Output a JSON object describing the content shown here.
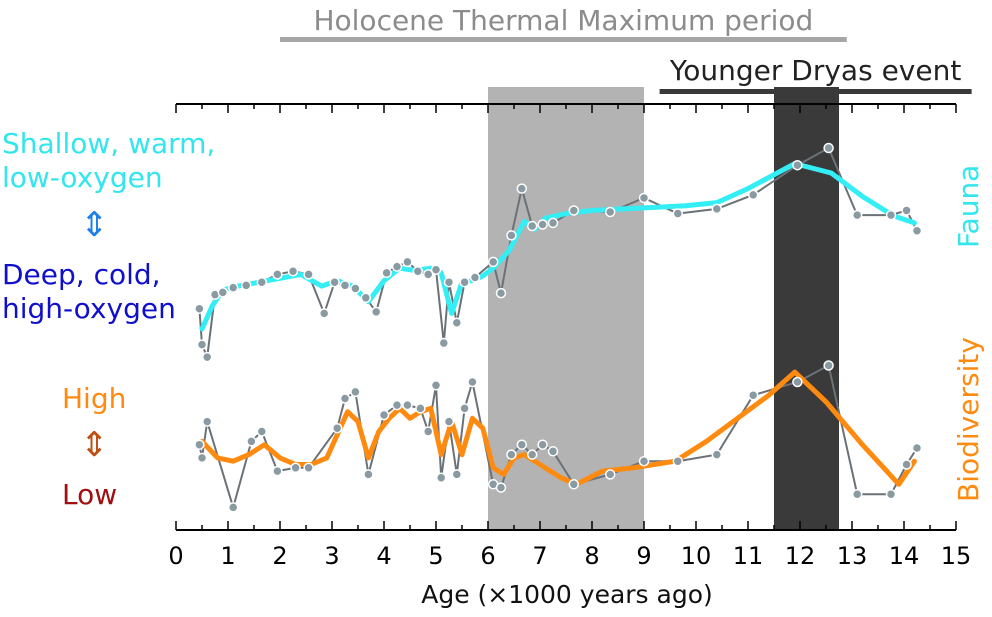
{
  "chart_data": {
    "type": "line",
    "title": "",
    "xlabel": "Age (×1000 years ago)",
    "x_ticks": [
      "0",
      "1",
      "2",
      "3",
      "4",
      "5",
      "6",
      "7",
      "8",
      "9",
      "10",
      "11",
      "12",
      "13",
      "14",
      "15"
    ],
    "xlim": [
      0,
      15
    ],
    "periods": [
      {
        "name": "Holocene Thermal Maximum period",
        "bar_range": [
          2.0,
          12.9
        ],
        "shade_range": [
          6.0,
          9.0
        ],
        "shade_color": "#b3b3b3",
        "bar_color": "#a6a6a6"
      },
      {
        "name": "Younger Dryas event",
        "bar_range": [
          9.3,
          15.3
        ],
        "shade_range": [
          11.5,
          12.75
        ],
        "shade_color": "#3a3a3a",
        "bar_color": "#3a3a3a"
      }
    ],
    "panels": [
      {
        "name": "Fauna",
        "label_color": "#33e6ee",
        "y_top_label": "Shallow, warm, low-oxygen",
        "y_bottom_label": "Deep, cold, high-oxygen",
        "y_top_color": "#33e6ee",
        "y_bottom_color": "#1010cc",
        "arrow_glyph": "⇕",
        "arrow_color": "#1f7fe8",
        "raw": {
          "x": [
            0.45,
            0.5,
            0.6,
            0.75,
            0.9,
            1.1,
            1.35,
            1.65,
            1.95,
            2.25,
            2.55,
            2.85,
            3.05,
            3.25,
            3.45,
            3.65,
            3.85,
            4.05,
            4.25,
            4.45,
            4.65,
            4.85,
            5.0,
            5.15,
            5.25,
            5.4,
            5.55,
            5.75,
            6.1,
            6.25,
            6.45,
            6.65,
            6.85,
            7.05,
            7.25,
            7.65,
            8.35,
            9.0,
            9.65,
            10.4,
            11.1,
            11.95,
            12.55,
            13.1,
            13.75,
            14.05,
            14.25
          ],
          "y": [
            -0.24,
            -0.7,
            -0.86,
            -0.06,
            -0.03,
            0.03,
            0.06,
            0.1,
            0.2,
            0.24,
            0.2,
            -0.3,
            0.1,
            0.06,
            0.02,
            -0.1,
            -0.28,
            0.22,
            0.3,
            0.36,
            0.24,
            0.2,
            0.26,
            -0.68,
            0.1,
            -0.42,
            0.1,
            0.16,
            0.36,
            -0.04,
            0.7,
            1.3,
            0.82,
            0.84,
            0.86,
            1.02,
            1.0,
            1.18,
            0.98,
            1.04,
            1.22,
            1.6,
            1.82,
            0.96,
            0.96,
            1.02,
            0.76
          ]
        },
        "smooth": {
          "x": [
            0.5,
            0.7,
            0.9,
            1.2,
            1.6,
            2.0,
            2.4,
            2.8,
            3.1,
            3.4,
            3.7,
            4.0,
            4.3,
            4.6,
            4.9,
            5.1,
            5.3,
            5.5,
            5.7,
            5.9,
            6.1,
            6.4,
            6.7,
            6.9,
            7.1,
            7.5,
            8.0,
            8.6,
            9.2,
            9.8,
            10.4,
            11.0,
            11.9,
            12.6,
            13.2,
            13.8,
            14.2
          ],
          "y": [
            -0.5,
            -0.2,
            0.0,
            0.05,
            0.1,
            0.15,
            0.2,
            0.05,
            0.12,
            0.05,
            -0.15,
            0.12,
            0.28,
            0.25,
            0.28,
            0.22,
            -0.3,
            0.1,
            0.12,
            0.18,
            0.28,
            0.5,
            0.88,
            0.78,
            0.92,
            0.98,
            1.02,
            1.04,
            1.06,
            1.08,
            1.12,
            1.3,
            1.62,
            1.5,
            1.2,
            0.95,
            0.86
          ]
        }
      },
      {
        "name": "Biodiversity",
        "label_color": "#ff8a10",
        "y_top_label": "High",
        "y_bottom_label": "Low",
        "y_top_color": "#ff8a10",
        "y_bottom_color": "#a01010",
        "arrow_glyph": "⇕",
        "arrow_color": "#c05010",
        "raw": {
          "x": [
            0.45,
            0.5,
            0.6,
            1.1,
            1.45,
            1.65,
            1.95,
            2.3,
            2.55,
            3.1,
            3.25,
            3.45,
            3.7,
            4.0,
            4.25,
            4.45,
            4.7,
            4.85,
            5.0,
            5.1,
            5.25,
            5.4,
            5.55,
            5.7,
            6.1,
            6.25,
            6.45,
            6.65,
            6.85,
            7.05,
            7.25,
            7.65,
            8.35,
            9.0,
            9.65,
            10.4,
            11.1,
            11.95,
            12.55,
            13.1,
            13.75,
            14.05,
            14.25
          ],
          "y": [
            0.1,
            -0.3,
            0.8,
            -1.8,
            0.2,
            0.5,
            -0.7,
            -0.6,
            -0.6,
            0.6,
            1.5,
            1.7,
            -0.8,
            1.0,
            1.3,
            1.3,
            1.2,
            0.5,
            1.9,
            -0.9,
            0.8,
            -0.8,
            1.2,
            2.0,
            -1.1,
            -1.2,
            -0.2,
            0.1,
            -0.2,
            0.1,
            -0.1,
            -1.1,
            -0.8,
            -0.4,
            -0.4,
            -0.2,
            1.6,
            2.0,
            2.5,
            -1.4,
            -1.4,
            -0.5,
            0.0
          ]
        },
        "smooth": {
          "x": [
            0.5,
            0.8,
            1.1,
            1.4,
            1.7,
            2.0,
            2.3,
            2.6,
            2.9,
            3.1,
            3.3,
            3.5,
            3.7,
            3.9,
            4.1,
            4.3,
            4.5,
            4.7,
            4.9,
            5.1,
            5.3,
            5.5,
            5.7,
            5.9,
            6.1,
            6.3,
            6.5,
            6.7,
            6.9,
            7.1,
            7.4,
            7.7,
            8.2,
            8.8,
            9.6,
            10.2,
            10.8,
            11.4,
            11.9,
            12.5,
            13.2,
            13.9,
            14.2
          ],
          "y": [
            0.2,
            -0.3,
            -0.4,
            -0.2,
            0.1,
            -0.3,
            -0.5,
            -0.5,
            -0.3,
            0.4,
            1.1,
            0.8,
            -0.3,
            0.5,
            0.9,
            1.2,
            0.9,
            1.1,
            1.2,
            -0.2,
            0.8,
            -0.2,
            0.9,
            0.6,
            -0.6,
            -0.8,
            -0.3,
            -0.2,
            -0.4,
            -0.6,
            -0.9,
            -1.1,
            -0.7,
            -0.6,
            -0.4,
            0.2,
            0.9,
            1.6,
            2.3,
            1.4,
            0.1,
            -1.1,
            -0.4
          ]
        }
      }
    ],
    "raw_line_color": "#6b7277",
    "marker_color": "#8a9aa3",
    "fauna_smooth_color": "#33eef5",
    "bio_smooth_color": "#ff8a10"
  }
}
